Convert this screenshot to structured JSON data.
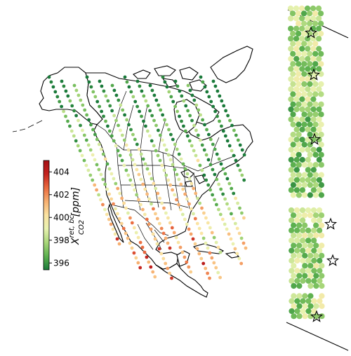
{
  "colorbar": {
    "label_main": "X",
    "label_sup": "ret, bc",
    "label_sub": "CO2",
    "label_units": " [ppm]",
    "ticks": [
      "404",
      "402",
      "400",
      "398",
      "396"
    ],
    "tick_values": [
      404,
      402,
      400,
      398,
      396
    ],
    "vmin": 395.4,
    "vmax": 405.0,
    "colors": [
      "#1a7a3a",
      "#5db14f",
      "#a9d77a",
      "#e8f2b0",
      "#fbe3a2",
      "#f7b071",
      "#ea6b3f",
      "#c4231f",
      "#a50f15"
    ]
  },
  "map": {
    "markers": [
      "star-icon",
      "star-icon",
      "star-icon",
      "star-icon",
      "star-icon",
      "star-icon"
    ]
  }
}
